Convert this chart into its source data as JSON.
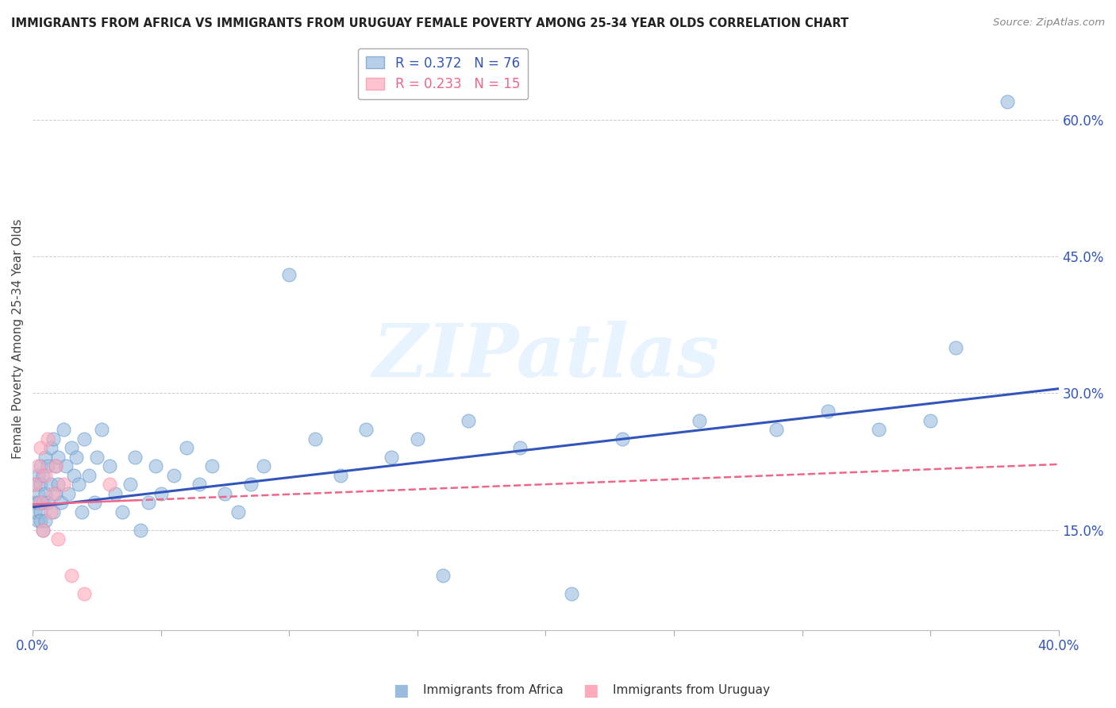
{
  "title": "IMMIGRANTS FROM AFRICA VS IMMIGRANTS FROM URUGUAY FEMALE POVERTY AMONG 25-34 YEAR OLDS CORRELATION CHART",
  "source": "Source: ZipAtlas.com",
  "ylabel": "Female Poverty Among 25-34 Year Olds",
  "xlim": [
    0.0,
    0.4
  ],
  "ylim": [
    0.04,
    0.68
  ],
  "yticks_right": [
    0.15,
    0.3,
    0.45,
    0.6
  ],
  "ytick_labels_right": [
    "15.0%",
    "30.0%",
    "45.0%",
    "60.0%"
  ],
  "legend_africa": "R = 0.372   N = 76",
  "legend_uruguay": "R = 0.233   N = 15",
  "africa_color": "#99BBDD",
  "africa_edge_color": "#6699CC",
  "africa_line_color": "#3355BB",
  "uruguay_color": "#FFAABB",
  "uruguay_edge_color": "#FF88AA",
  "uruguay_line_color": "#EE6688",
  "watermark_text": "ZIPatlas",
  "africa_x": [
    0.001,
    0.001,
    0.001,
    0.002,
    0.002,
    0.002,
    0.002,
    0.003,
    0.003,
    0.003,
    0.003,
    0.004,
    0.004,
    0.004,
    0.005,
    0.005,
    0.005,
    0.006,
    0.006,
    0.007,
    0.007,
    0.008,
    0.008,
    0.009,
    0.009,
    0.01,
    0.01,
    0.011,
    0.012,
    0.013,
    0.014,
    0.015,
    0.016,
    0.017,
    0.018,
    0.019,
    0.02,
    0.022,
    0.024,
    0.025,
    0.027,
    0.03,
    0.032,
    0.035,
    0.038,
    0.04,
    0.042,
    0.045,
    0.048,
    0.05,
    0.055,
    0.06,
    0.065,
    0.07,
    0.075,
    0.08,
    0.085,
    0.09,
    0.1,
    0.11,
    0.12,
    0.13,
    0.14,
    0.15,
    0.16,
    0.17,
    0.19,
    0.21,
    0.23,
    0.26,
    0.29,
    0.31,
    0.33,
    0.35,
    0.36,
    0.38
  ],
  "africa_y": [
    0.18,
    0.2,
    0.17,
    0.19,
    0.16,
    0.21,
    0.18,
    0.17,
    0.2,
    0.22,
    0.16,
    0.18,
    0.15,
    0.21,
    0.19,
    0.23,
    0.16,
    0.22,
    0.18,
    0.2,
    0.24,
    0.17,
    0.25,
    0.19,
    0.22,
    0.2,
    0.23,
    0.18,
    0.26,
    0.22,
    0.19,
    0.24,
    0.21,
    0.23,
    0.2,
    0.17,
    0.25,
    0.21,
    0.18,
    0.23,
    0.26,
    0.22,
    0.19,
    0.17,
    0.2,
    0.23,
    0.15,
    0.18,
    0.22,
    0.19,
    0.21,
    0.24,
    0.2,
    0.22,
    0.19,
    0.17,
    0.2,
    0.22,
    0.43,
    0.25,
    0.21,
    0.26,
    0.23,
    0.25,
    0.1,
    0.27,
    0.24,
    0.08,
    0.25,
    0.27,
    0.26,
    0.28,
    0.26,
    0.27,
    0.35,
    0.62
  ],
  "uruguay_x": [
    0.001,
    0.002,
    0.003,
    0.003,
    0.004,
    0.005,
    0.006,
    0.007,
    0.008,
    0.009,
    0.01,
    0.012,
    0.015,
    0.02,
    0.03
  ],
  "uruguay_y": [
    0.2,
    0.22,
    0.18,
    0.24,
    0.15,
    0.21,
    0.25,
    0.17,
    0.19,
    0.22,
    0.14,
    0.2,
    0.1,
    0.08,
    0.2
  ],
  "africa_trend_x0": 0.0,
  "africa_trend_y0": 0.175,
  "africa_trend_x1": 0.4,
  "africa_trend_y1": 0.305,
  "uruguay_trend_x0": 0.0,
  "uruguay_trend_y0": 0.178,
  "uruguay_trend_x1": 0.4,
  "uruguay_trend_y1": 0.222
}
